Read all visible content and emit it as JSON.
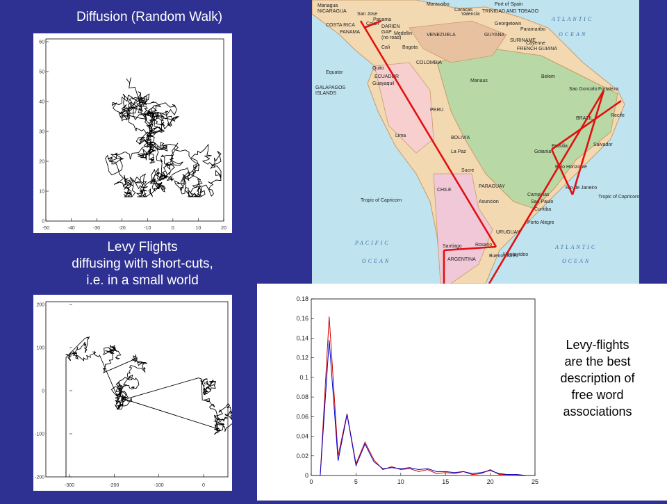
{
  "rw": {
    "title": "Diffusion (Random Walk)",
    "xticks": [
      "-50",
      "-40",
      "-30",
      "-20",
      "-10",
      "0",
      "10",
      "20"
    ],
    "yticks": [
      "60",
      "50",
      "40",
      "30",
      "20",
      "10",
      "0"
    ]
  },
  "levy": {
    "caption": [
      "Levy Flights",
      "diffusing with short-cuts,",
      "i.e. in a small world"
    ],
    "xticks": [
      "-300",
      "-200",
      "-100",
      "0"
    ],
    "yticks": [
      "200",
      "100",
      "0",
      "-100",
      "-200"
    ]
  },
  "map": {
    "oceans": [
      "ATLANTIC",
      "OCEAN",
      "PACIFIC",
      "OCEAN",
      "ATLANTIC",
      "OCEAN"
    ],
    "labels": [
      "Managua",
      "NICARAGUA",
      "San Jose",
      "COSTA RICA",
      "Panama",
      "PANAMA",
      "Colon",
      "DARIEN",
      "GAP",
      "(no road)",
      "Maracaibo",
      "Caracas",
      "Port of Spain",
      "TRINIDAD AND TOBAGO",
      "Valencia",
      "VENEZUELA",
      "Medellin",
      "Bogota",
      "COLOMBIA",
      "Cali",
      "Georgetown",
      "GUYANA",
      "Paramaribo",
      "SURINAME",
      "Cayenne",
      "FRENCH GUIANA",
      "Equator",
      "Quito",
      "ECUADOR",
      "Guayaquil",
      "GALAPAGOS",
      "ISLANDS",
      "Manaus",
      "Belem",
      "Sao Goncalo",
      "Fortaleza",
      "Recife",
      "BRAZIL",
      "PERU",
      "Lima",
      "BOLIVIA",
      "La Paz",
      "Sucre",
      "Brasilia",
      "Goiania",
      "Salvador",
      "Belo Horizonte",
      "Rio de Janeiro",
      "Campinas",
      "Sao Paulo",
      "Curitiba",
      "CHILE",
      "PARAGUAY",
      "Asuncion",
      "Tropic of Capricorn",
      "Tropic of Capricorn",
      "Porto Alegre",
      "URUGUAY",
      "Montevideo",
      "Santiago",
      "Buenos Aires",
      "ARGENTINA",
      "Rosario"
    ]
  },
  "chart_data": {
    "type": "line",
    "x": [
      0,
      1,
      2,
      3,
      4,
      5,
      6,
      7,
      8,
      9,
      10,
      11,
      12,
      13,
      14,
      15,
      16,
      17,
      18,
      19,
      20,
      21,
      22,
      23,
      24,
      25
    ],
    "series": [
      {
        "color": "#cc0000",
        "values": [
          0,
          0,
          0.162,
          0.02,
          0.063,
          0.012,
          0.034,
          0.016,
          0.006,
          0.009,
          0.006,
          0.007,
          0.004,
          0.006,
          0.002,
          0.003,
          0.002,
          0.004,
          0.001,
          0.002,
          0.006,
          0.001,
          0.001,
          0.001,
          0,
          0
        ]
      },
      {
        "color": "#0000cc",
        "values": [
          0,
          0,
          0.138,
          0.015,
          0.062,
          0.01,
          0.032,
          0.014,
          0.007,
          0.008,
          0.007,
          0.008,
          0.006,
          0.007,
          0.004,
          0.004,
          0.003,
          0.004,
          0.002,
          0.003,
          0.005,
          0.002,
          0.001,
          0.001,
          0,
          0
        ]
      }
    ],
    "xlim": [
      0,
      25
    ],
    "ylim": [
      0,
      0.18
    ],
    "xticks": [
      0,
      5,
      10,
      15,
      20,
      25
    ],
    "yticks": [
      0,
      0.02,
      0.04,
      0.06,
      0.08,
      0.1,
      0.12,
      0.14,
      0.16,
      0.18
    ],
    "ytick_labels": [
      "0",
      "0.02",
      "0.04",
      "0.06",
      "0.08",
      "0.1",
      "0.12",
      "0.14",
      "0.16",
      "0.18"
    ]
  },
  "side_text": [
    "Levy-flights",
    "are the best",
    "description of",
    "free word",
    "associations"
  ],
  "colors": {
    "background": "#2e3192",
    "route": "#e01010",
    "land": "#f3d9b1",
    "brazil": "#b8d9a6",
    "sea": "#bfe3ef"
  }
}
